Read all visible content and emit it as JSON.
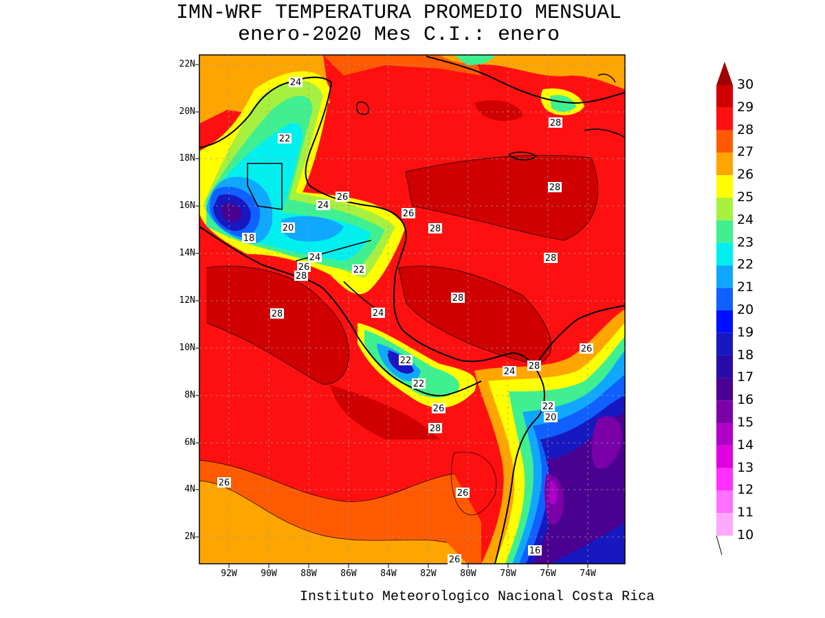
{
  "title_line1": "IMN-WRF  TEMPERATURA PROMEDIO MENSUAL",
  "title_line2": "enero-2020 Mes C.I.: enero",
  "footer": "Instituto Meteorologico Nacional Costa Rica",
  "map": {
    "lat_labels": [
      "22N",
      "20N",
      "18N",
      "16N",
      "14N",
      "12N",
      "10N",
      "8N",
      "6N",
      "4N",
      "2N"
    ],
    "lon_labels": [
      "92W",
      "90W",
      "88W",
      "86W",
      "84W",
      "82W",
      "80W",
      "78W",
      "76W",
      "74W"
    ],
    "gridlines": true
  },
  "contour_labels": [
    "24",
    "22",
    "26",
    "24",
    "20",
    "18",
    "24",
    "26",
    "28",
    "22",
    "28",
    "24",
    "26",
    "28",
    "28",
    "28",
    "28",
    "28",
    "26",
    "28",
    "24",
    "22",
    "26",
    "28",
    "22",
    "20",
    "26",
    "26",
    "16",
    "26",
    "22"
  ],
  "legend": {
    "ticks": [
      "30",
      "29",
      "28",
      "27",
      "26",
      "25",
      "24",
      "23",
      "22",
      "21",
      "20",
      "19",
      "18",
      "17",
      "16",
      "15",
      "14",
      "13",
      "12",
      "11",
      "10"
    ],
    "colors": [
      "#a00000",
      "#d00000",
      "#ff1010",
      "#ff5a00",
      "#ffa500",
      "#ffff00",
      "#a8f040",
      "#40f090",
      "#00f0f0",
      "#10a8ff",
      "#1060ff",
      "#0010ff",
      "#1818c0",
      "#2a0aa8",
      "#4a0090",
      "#7a00a8",
      "#b000c8",
      "#e000e0",
      "#ff30ff",
      "#ff70ff",
      "#ffa8ff"
    ]
  }
}
